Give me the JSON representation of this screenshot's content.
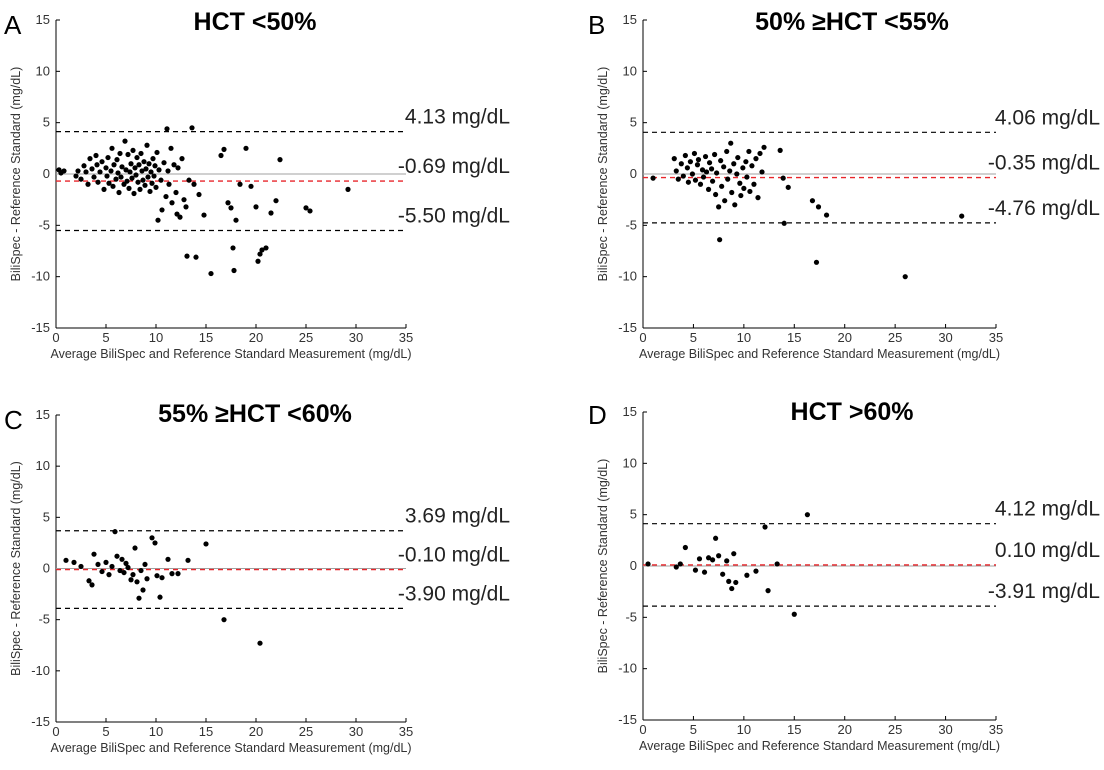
{
  "chart_data": [
    {
      "panel": "A",
      "title": "HCT <50%",
      "type": "scatter",
      "xlabel": "Average BiliSpec and Reference Standard Measurement (mg/dL)",
      "ylabel": "BiliSpec - Reference Standard (mg/dL)",
      "xlim": [
        0,
        35
      ],
      "ylim": [
        -15,
        15
      ],
      "xticks": [
        0,
        5,
        10,
        15,
        20,
        25,
        30,
        35
      ],
      "yticks": [
        -15,
        -10,
        -5,
        0,
        5,
        10,
        15
      ],
      "bias": -0.69,
      "upper_loa": 4.13,
      "lower_loa": -5.5,
      "bias_label": "-0.69 mg/dL",
      "upper_label": "4.13 mg/dL",
      "lower_label": "-5.50 mg/dL",
      "points": [
        [
          0.3,
          0.4
        ],
        [
          0.5,
          0.1
        ],
        [
          0.8,
          0.3
        ],
        [
          2.0,
          -0.2
        ],
        [
          2.2,
          0.3
        ],
        [
          2.5,
          -0.5
        ],
        [
          2.8,
          0.8
        ],
        [
          3.0,
          0.2
        ],
        [
          3.2,
          -1.0
        ],
        [
          3.4,
          1.5
        ],
        [
          3.6,
          0.5
        ],
        [
          3.8,
          -0.3
        ],
        [
          4.0,
          1.8
        ],
        [
          4.1,
          0.9
        ],
        [
          4.2,
          -0.8
        ],
        [
          4.4,
          0.2
        ],
        [
          4.6,
          1.2
        ],
        [
          4.8,
          -1.5
        ],
        [
          5.0,
          0.6
        ],
        [
          5.1,
          -0.2
        ],
        [
          5.2,
          1.6
        ],
        [
          5.3,
          -0.9
        ],
        [
          5.5,
          0.3
        ],
        [
          5.6,
          2.5
        ],
        [
          5.7,
          -1.2
        ],
        [
          5.8,
          0.9
        ],
        [
          6.0,
          -0.5
        ],
        [
          6.1,
          1.4
        ],
        [
          6.2,
          0.1
        ],
        [
          6.3,
          -1.8
        ],
        [
          6.4,
          2.0
        ],
        [
          6.5,
          -0.3
        ],
        [
          6.6,
          0.7
        ],
        [
          6.8,
          -1.0
        ],
        [
          6.9,
          3.2
        ],
        [
          7.0,
          0.4
        ],
        [
          7.1,
          -0.7
        ],
        [
          7.2,
          1.9
        ],
        [
          7.3,
          -1.4
        ],
        [
          7.4,
          0.2
        ],
        [
          7.5,
          1.0
        ],
        [
          7.6,
          -0.4
        ],
        [
          7.7,
          2.3
        ],
        [
          7.8,
          -1.9
        ],
        [
          7.9,
          0.6
        ],
        [
          8.0,
          -0.1
        ],
        [
          8.1,
          1.6
        ],
        [
          8.2,
          -0.8
        ],
        [
          8.3,
          0.9
        ],
        [
          8.4,
          -1.5
        ],
        [
          8.5,
          2.0
        ],
        [
          8.6,
          0.3
        ],
        [
          8.7,
          -0.6
        ],
        [
          8.8,
          1.2
        ],
        [
          8.9,
          -1.1
        ],
        [
          9.0,
          0.5
        ],
        [
          9.1,
          2.8
        ],
        [
          9.2,
          -0.3
        ],
        [
          9.3,
          1.0
        ],
        [
          9.4,
          -1.7
        ],
        [
          9.5,
          0.2
        ],
        [
          9.6,
          -0.9
        ],
        [
          9.7,
          1.5
        ],
        [
          9.8,
          -0.2
        ],
        [
          9.9,
          0.8
        ],
        [
          10.0,
          -1.3
        ],
        [
          10.1,
          2.1
        ],
        [
          10.2,
          -4.5
        ],
        [
          10.3,
          0.4
        ],
        [
          10.5,
          -0.6
        ],
        [
          10.6,
          -3.5
        ],
        [
          10.8,
          1.1
        ],
        [
          11.0,
          -2.2
        ],
        [
          11.1,
          4.4
        ],
        [
          11.2,
          0.3
        ],
        [
          11.3,
          -1.0
        ],
        [
          11.5,
          2.5
        ],
        [
          11.6,
          -2.8
        ],
        [
          11.8,
          0.9
        ],
        [
          12.0,
          -1.8
        ],
        [
          12.1,
          -3.9
        ],
        [
          12.2,
          0.6
        ],
        [
          12.4,
          -4.2
        ],
        [
          12.6,
          1.5
        ],
        [
          12.8,
          -2.5
        ],
        [
          13.0,
          -3.2
        ],
        [
          13.1,
          -8.0
        ],
        [
          13.3,
          -0.6
        ],
        [
          13.6,
          4.5
        ],
        [
          13.8,
          -1.0
        ],
        [
          14.0,
          -8.1
        ],
        [
          14.3,
          -2.0
        ],
        [
          14.8,
          -4.0
        ],
        [
          15.5,
          -9.7
        ],
        [
          16.5,
          1.8
        ],
        [
          16.8,
          2.4
        ],
        [
          17.2,
          -2.8
        ],
        [
          17.5,
          -3.3
        ],
        [
          17.7,
          -7.2
        ],
        [
          17.8,
          -9.4
        ],
        [
          18.0,
          -4.5
        ],
        [
          18.4,
          -1.0
        ],
        [
          19.0,
          2.5
        ],
        [
          19.5,
          -1.2
        ],
        [
          20.0,
          -3.2
        ],
        [
          20.2,
          -8.5
        ],
        [
          20.4,
          -7.8
        ],
        [
          20.6,
          -7.4
        ],
        [
          21.0,
          -7.2
        ],
        [
          21.5,
          -3.8
        ],
        [
          22.0,
          -2.6
        ],
        [
          22.4,
          1.4
        ],
        [
          25.0,
          -3.3
        ],
        [
          25.4,
          -3.6
        ],
        [
          29.2,
          -1.5
        ]
      ]
    },
    {
      "panel": "B",
      "title": "50% ≥HCT <55%",
      "type": "scatter",
      "xlabel": "Average BiliSpec and Reference Standard Measurement (mg/dL)",
      "ylabel": "BiliSpec - Reference Standard (mg/dL)",
      "xlim": [
        0,
        35
      ],
      "ylim": [
        -15,
        15
      ],
      "xticks": [
        0,
        5,
        10,
        15,
        20,
        25,
        30,
        35
      ],
      "yticks": [
        -15,
        -10,
        -5,
        0,
        5,
        10,
        15
      ],
      "bias": -0.35,
      "upper_loa": 4.06,
      "lower_loa": -4.76,
      "bias_label": "-0.35 mg/dL",
      "upper_label": "4.06 mg/dL",
      "lower_label": "-4.76 mg/dL",
      "points": [
        [
          1.0,
          -0.4
        ],
        [
          3.1,
          1.5
        ],
        [
          3.3,
          0.3
        ],
        [
          3.5,
          -0.5
        ],
        [
          3.8,
          1.0
        ],
        [
          4.0,
          -0.2
        ],
        [
          4.2,
          1.8
        ],
        [
          4.4,
          0.6
        ],
        [
          4.5,
          -0.8
        ],
        [
          4.7,
          1.2
        ],
        [
          4.9,
          0.0
        ],
        [
          5.1,
          2.0
        ],
        [
          5.2,
          -0.6
        ],
        [
          5.4,
          0.9
        ],
        [
          5.5,
          1.4
        ],
        [
          5.7,
          -1.0
        ],
        [
          5.9,
          0.4
        ],
        [
          6.0,
          -0.3
        ],
        [
          6.2,
          1.7
        ],
        [
          6.3,
          0.2
        ],
        [
          6.5,
          -1.5
        ],
        [
          6.6,
          1.1
        ],
        [
          6.8,
          0.5
        ],
        [
          6.9,
          -0.7
        ],
        [
          7.1,
          1.9
        ],
        [
          7.2,
          -2.0
        ],
        [
          7.3,
          0.1
        ],
        [
          7.5,
          -3.2
        ],
        [
          7.6,
          -6.4
        ],
        [
          7.7,
          1.3
        ],
        [
          7.8,
          -1.2
        ],
        [
          8.0,
          0.7
        ],
        [
          8.1,
          -2.6
        ],
        [
          8.3,
          2.2
        ],
        [
          8.4,
          -0.5
        ],
        [
          8.6,
          0.3
        ],
        [
          8.7,
          3.0
        ],
        [
          8.8,
          -1.8
        ],
        [
          9.0,
          1.0
        ],
        [
          9.1,
          -3.0
        ],
        [
          9.3,
          0.0
        ],
        [
          9.4,
          1.6
        ],
        [
          9.6,
          -0.9
        ],
        [
          9.7,
          -2.1
        ],
        [
          9.9,
          0.6
        ],
        [
          10.0,
          -1.4
        ],
        [
          10.2,
          1.2
        ],
        [
          10.3,
          -0.3
        ],
        [
          10.5,
          2.2
        ],
        [
          10.6,
          -1.7
        ],
        [
          10.8,
          0.8
        ],
        [
          11.0,
          -1.0
        ],
        [
          11.2,
          1.5
        ],
        [
          11.4,
          -2.3
        ],
        [
          11.6,
          2.0
        ],
        [
          11.8,
          0.2
        ],
        [
          12.0,
          2.6
        ],
        [
          13.6,
          2.3
        ],
        [
          13.9,
          -0.4
        ],
        [
          14.0,
          -4.8
        ],
        [
          14.4,
          -1.3
        ],
        [
          16.8,
          -2.6
        ],
        [
          17.2,
          -8.6
        ],
        [
          17.4,
          -3.2
        ],
        [
          18.2,
          -4.0
        ],
        [
          26.0,
          -10.0
        ],
        [
          31.6,
          -4.1
        ]
      ]
    },
    {
      "panel": "C",
      "title": "55% ≥HCT <60%",
      "type": "scatter",
      "xlabel": "Average BiliSpec and Reference Standard Measurement (mg/dL)",
      "ylabel": "BiliSpec - Reference Standard (mg/dL)",
      "xlim": [
        0,
        35
      ],
      "ylim": [
        -15,
        15
      ],
      "xticks": [
        0,
        5,
        10,
        15,
        20,
        25,
        30,
        35
      ],
      "yticks": [
        -15,
        -10,
        -5,
        0,
        5,
        10,
        15
      ],
      "bias": -0.1,
      "upper_loa": 3.69,
      "lower_loa": -3.9,
      "bias_label": "-0.10 mg/dL",
      "upper_label": "3.69 mg/dL",
      "lower_label": "-3.90 mg/dL",
      "points": [
        [
          1.0,
          0.8
        ],
        [
          1.8,
          0.6
        ],
        [
          2.5,
          0.2
        ],
        [
          3.3,
          -1.2
        ],
        [
          3.6,
          -1.6
        ],
        [
          3.8,
          1.4
        ],
        [
          4.2,
          0.4
        ],
        [
          4.6,
          -0.3
        ],
        [
          5.0,
          0.6
        ],
        [
          5.3,
          -0.6
        ],
        [
          5.6,
          0.2
        ],
        [
          5.9,
          3.6
        ],
        [
          6.1,
          1.2
        ],
        [
          6.4,
          -0.2
        ],
        [
          6.6,
          0.9
        ],
        [
          6.8,
          -0.4
        ],
        [
          7.0,
          0.5
        ],
        [
          7.2,
          0.1
        ],
        [
          7.5,
          -1.1
        ],
        [
          7.7,
          -0.6
        ],
        [
          7.9,
          2.0
        ],
        [
          8.1,
          -1.3
        ],
        [
          8.3,
          -2.9
        ],
        [
          8.5,
          -0.2
        ],
        [
          8.7,
          -2.1
        ],
        [
          8.9,
          0.4
        ],
        [
          9.1,
          -1.0
        ],
        [
          9.6,
          3.0
        ],
        [
          9.9,
          2.5
        ],
        [
          10.1,
          -0.7
        ],
        [
          10.4,
          -2.8
        ],
        [
          10.6,
          -0.9
        ],
        [
          11.2,
          0.9
        ],
        [
          11.6,
          -0.5
        ],
        [
          12.2,
          -0.5
        ],
        [
          13.2,
          0.8
        ],
        [
          15.0,
          2.4
        ],
        [
          16.8,
          -5.0
        ],
        [
          20.4,
          -7.3
        ]
      ]
    },
    {
      "panel": "D",
      "title": "HCT >60%",
      "type": "scatter",
      "xlabel": "Average BiliSpec and Reference Standard Measurement (mg/dL)",
      "ylabel": "BiliSpec - Reference Standard (mg/dL)",
      "xlim": [
        0,
        35
      ],
      "ylim": [
        -15,
        15
      ],
      "xticks": [
        0,
        5,
        10,
        15,
        20,
        25,
        30,
        35
      ],
      "yticks": [
        -15,
        -10,
        -5,
        0,
        5,
        10,
        15
      ],
      "bias": 0.1,
      "upper_loa": 4.12,
      "lower_loa": -3.91,
      "bias_label": "0.10 mg/dL",
      "upper_label": "4.12 mg/dL",
      "lower_label": "-3.91 mg/dL",
      "points": [
        [
          0.5,
          0.2
        ],
        [
          3.3,
          -0.1
        ],
        [
          3.7,
          0.2
        ],
        [
          4.2,
          1.8
        ],
        [
          5.2,
          -0.4
        ],
        [
          5.6,
          0.7
        ],
        [
          6.1,
          -0.6
        ],
        [
          6.5,
          0.8
        ],
        [
          6.9,
          0.6
        ],
        [
          7.2,
          2.7
        ],
        [
          7.5,
          1.0
        ],
        [
          7.9,
          -0.8
        ],
        [
          8.3,
          0.5
        ],
        [
          8.5,
          -1.5
        ],
        [
          8.8,
          -2.2
        ],
        [
          9.0,
          1.2
        ],
        [
          9.2,
          -1.6
        ],
        [
          10.3,
          -0.9
        ],
        [
          11.2,
          -0.5
        ],
        [
          12.1,
          3.8
        ],
        [
          12.4,
          -2.4
        ],
        [
          13.3,
          0.2
        ],
        [
          15.0,
          -4.7
        ],
        [
          16.3,
          5.0
        ]
      ]
    }
  ],
  "panels": [
    {
      "letter": "A"
    },
    {
      "letter": "B"
    },
    {
      "letter": "C"
    },
    {
      "letter": "D"
    }
  ],
  "colors": {
    "points": "#000000",
    "loa_line": "#000000",
    "bias_line": "#e8252a",
    "zero_line": "#a0a0a0",
    "axis": "#000000",
    "tick_text": "#333333"
  }
}
